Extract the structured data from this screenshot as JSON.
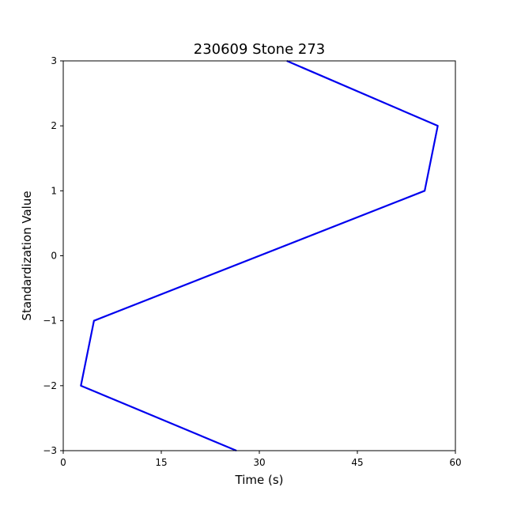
{
  "chart_data": {
    "type": "line",
    "title": "230609 Stone 273",
    "xlabel": "Time (s)",
    "ylabel": "Standardization Value",
    "xlim": [
      0,
      60
    ],
    "ylim": [
      -3,
      3
    ],
    "xticks": [
      0,
      15,
      30,
      45,
      60
    ],
    "yticks": [
      -3,
      -2,
      -1,
      0,
      1,
      2,
      3
    ],
    "grid": false,
    "series": [
      {
        "name": "series-1",
        "color": "#0000ee",
        "points": [
          {
            "x": 26.5,
            "y": -3
          },
          {
            "x": 2.7,
            "y": -2
          },
          {
            "x": 4.7,
            "y": -1
          },
          {
            "x": 55.3,
            "y": 1
          },
          {
            "x": 57.3,
            "y": 2
          },
          {
            "x": 34.2,
            "y": 3
          }
        ]
      }
    ]
  }
}
